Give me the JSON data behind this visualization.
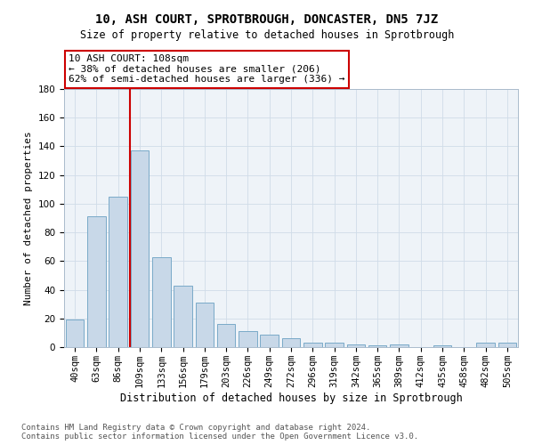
{
  "title": "10, ASH COURT, SPROTBROUGH, DONCASTER, DN5 7JZ",
  "subtitle": "Size of property relative to detached houses in Sprotbrough",
  "xlabel": "Distribution of detached houses by size in Sprotbrough",
  "ylabel": "Number of detached properties",
  "categories": [
    "40sqm",
    "63sqm",
    "86sqm",
    "109sqm",
    "133sqm",
    "156sqm",
    "179sqm",
    "203sqm",
    "226sqm",
    "249sqm",
    "272sqm",
    "296sqm",
    "319sqm",
    "342sqm",
    "365sqm",
    "389sqm",
    "412sqm",
    "435sqm",
    "458sqm",
    "482sqm",
    "505sqm"
  ],
  "values": [
    19,
    91,
    105,
    137,
    63,
    43,
    31,
    16,
    11,
    9,
    6,
    3,
    3,
    2,
    1,
    2,
    0,
    1,
    0,
    3,
    3
  ],
  "bar_color": "#c8d8e8",
  "bar_edge_color": "#7aaac8",
  "vline_color": "#cc0000",
  "vline_index": 3,
  "annotation_line1": "10 ASH COURT: 108sqm",
  "annotation_line2": "← 38% of detached houses are smaller (206)",
  "annotation_line3": "62% of semi-detached houses are larger (336) →",
  "annotation_box_edge_color": "#cc0000",
  "annotation_fontsize": 8,
  "grid_color": "#d0dce8",
  "footer_text": "Contains HM Land Registry data © Crown copyright and database right 2024.\nContains public sector information licensed under the Open Government Licence v3.0.",
  "ylim": [
    0,
    180
  ],
  "yticks": [
    0,
    20,
    40,
    60,
    80,
    100,
    120,
    140,
    160,
    180
  ],
  "title_fontsize": 10,
  "subtitle_fontsize": 8.5,
  "xlabel_fontsize": 8.5,
  "ylabel_fontsize": 8,
  "tick_fontsize": 7.5,
  "footer_fontsize": 6.5
}
